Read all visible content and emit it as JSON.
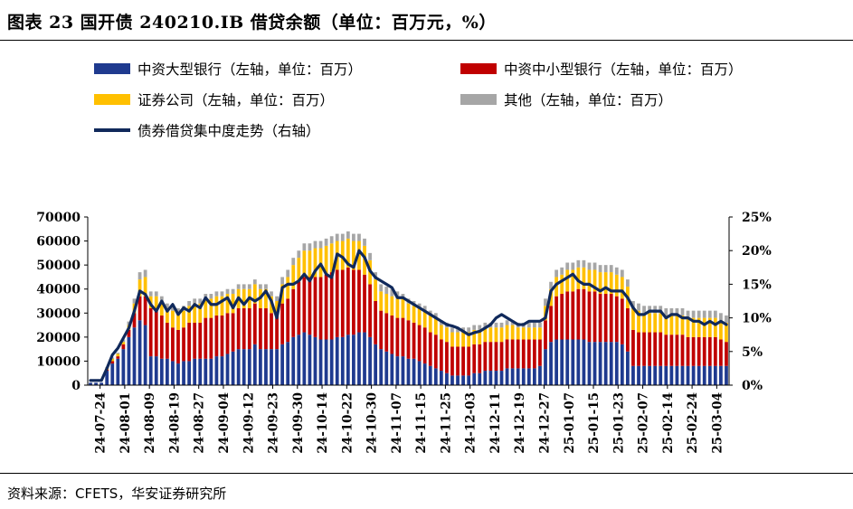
{
  "title": "图表 23  国开债 240210.IB 借贷余额（单位：百万元，%）",
  "source": "资料来源：CFETS，华安证券研究所",
  "colors": {
    "big_bank": "#1f3a8f",
    "small_bank": "#c00000",
    "securities": "#ffc000",
    "other": "#a6a6a6",
    "line": "#10295b"
  },
  "chart_data": {
    "type": "bar",
    "stacked": true,
    "legend": [
      "中资大型银行（左轴，单位：百万）",
      "中资中小型银行（左轴，单位：百万）",
      "证券公司（左轴，单位：百万）",
      "其他（左轴，单位：百万）",
      "债券借贷集中度走势（右轴）"
    ],
    "left_axis": {
      "min": 0,
      "max": 70000,
      "ticks": [
        "0",
        "10000",
        "20000",
        "30000",
        "40000",
        "50000",
        "60000",
        "70000"
      ]
    },
    "right_axis": {
      "min": 0,
      "max": 25,
      "ticks": [
        "0%",
        "5%",
        "10%",
        "15%",
        "20%",
        "25%"
      ]
    },
    "x_tick_labels": [
      "24-07-24",
      "24-08-01",
      "24-08-09",
      "24-08-19",
      "24-08-27",
      "24-09-04",
      "24-09-12",
      "24-09-23",
      "24-09-30",
      "24-10-14",
      "24-10-22",
      "24-10-30",
      "24-11-07",
      "24-11-15",
      "24-11-25",
      "24-12-03",
      "24-12-11",
      "24-12-19",
      "24-12-27",
      "25-01-07",
      "25-01-15",
      "25-01-23",
      "25-02-07",
      "25-02-14",
      "25-02-24",
      "25-03-04"
    ],
    "series": [
      {
        "name": "中资大型银行（左轴，单位：百万）",
        "values": [
          1000,
          1000,
          1000,
          6000,
          9000,
          11000,
          15000,
          20000,
          24000,
          27000,
          25000,
          12000,
          12000,
          11000,
          11000,
          10000,
          9000,
          10000,
          10000,
          11000,
          11000,
          11000,
          11000,
          12000,
          12000,
          13000,
          14000,
          15000,
          15000,
          15000,
          17000,
          15000,
          15000,
          15000,
          15000,
          17000,
          18000,
          20000,
          21000,
          22000,
          21000,
          20000,
          19000,
          19000,
          19000,
          20000,
          20000,
          21000,
          21000,
          22000,
          22000,
          20000,
          17000,
          15000,
          14000,
          13000,
          12000,
          12000,
          11000,
          11000,
          10000,
          9000,
          8000,
          7000,
          6000,
          5000,
          4000,
          4000,
          4000,
          4000,
          5000,
          5000,
          6000,
          6000,
          6000,
          6000,
          7000,
          7000,
          7000,
          7000,
          7000,
          7000,
          8000,
          15000,
          18000,
          19000,
          19000,
          19000,
          19000,
          19000,
          19000,
          18000,
          18000,
          18000,
          18000,
          18000,
          18000,
          17000,
          14000,
          8000,
          8000,
          8000,
          8000,
          8000,
          8000,
          8000,
          8000,
          8000,
          8000,
          8000,
          8000,
          8000,
          8000,
          8000,
          8000,
          8000,
          8000
        ]
      },
      {
        "name": "中资中小型银行（左轴，单位：百万）",
        "values": [
          0,
          0,
          0,
          500,
          1000,
          1000,
          2000,
          3000,
          6000,
          10000,
          12000,
          20000,
          20000,
          18000,
          15000,
          14000,
          14000,
          14000,
          16000,
          15000,
          15000,
          17000,
          17000,
          17000,
          17000,
          17000,
          16000,
          17000,
          17000,
          17000,
          17000,
          17000,
          17000,
          15000,
          14000,
          17000,
          18000,
          20000,
          22000,
          23000,
          24000,
          25000,
          26000,
          27000,
          28000,
          28000,
          28000,
          28000,
          27000,
          26000,
          24000,
          22000,
          18000,
          16000,
          16000,
          16000,
          16000,
          16000,
          16000,
          15000,
          15000,
          15000,
          14000,
          14000,
          13000,
          13000,
          12000,
          12000,
          12000,
          12000,
          12000,
          12000,
          12000,
          12000,
          12000,
          12000,
          12000,
          12000,
          12000,
          12000,
          12000,
          12000,
          11000,
          12000,
          15000,
          18000,
          19000,
          20000,
          20000,
          21000,
          21000,
          21000,
          21000,
          20000,
          20000,
          20000,
          19000,
          19000,
          18000,
          15000,
          14000,
          14000,
          14000,
          14000,
          14000,
          13000,
          13000,
          13000,
          13000,
          12000,
          12000,
          12000,
          12000,
          12000,
          12000,
          11000,
          10000
        ]
      },
      {
        "name": "证券公司（左轴，单位：百万）",
        "values": [
          0,
          0,
          0,
          500,
          1000,
          1000,
          1000,
          2000,
          4000,
          7000,
          8000,
          5000,
          5000,
          6000,
          6000,
          7000,
          7000,
          7000,
          7000,
          8000,
          8000,
          8000,
          8000,
          8000,
          8000,
          8000,
          8000,
          8000,
          8000,
          8000,
          8000,
          8000,
          8000,
          7000,
          6000,
          8000,
          9000,
          10000,
          10000,
          11000,
          11000,
          12000,
          12000,
          12000,
          12000,
          12000,
          12000,
          12000,
          12000,
          12000,
          12000,
          10000,
          9000,
          8000,
          8000,
          8000,
          8000,
          8000,
          7000,
          7000,
          7000,
          7000,
          7000,
          7000,
          6000,
          6000,
          6000,
          6000,
          6000,
          6000,
          6000,
          6000,
          6000,
          6000,
          6000,
          6000,
          6000,
          6000,
          5000,
          5000,
          5000,
          5000,
          5000,
          6000,
          7000,
          8000,
          8000,
          9000,
          9000,
          9000,
          9000,
          9000,
          9000,
          9000,
          9000,
          9000,
          9000,
          9000,
          9000,
          9000,
          9000,
          8000,
          8000,
          8000,
          8000,
          8000,
          8000,
          8000,
          8000,
          8000,
          8000,
          8000,
          8000,
          8000,
          8000,
          8000,
          8000
        ]
      },
      {
        "name": "其他（左轴，单位：百万）",
        "values": [
          0,
          0,
          0,
          500,
          500,
          500,
          1000,
          1500,
          2000,
          3000,
          3000,
          2000,
          2000,
          2000,
          2000,
          2000,
          2000,
          2000,
          2000,
          2000,
          2000,
          2000,
          2000,
          2000,
          2000,
          2000,
          2000,
          2000,
          2000,
          2000,
          2000,
          2000,
          2000,
          2000,
          2000,
          3000,
          3000,
          3000,
          3000,
          3000,
          3000,
          3000,
          3000,
          3000,
          3000,
          3000,
          3000,
          3000,
          3000,
          3000,
          3000,
          3000,
          3000,
          3000,
          3000,
          3000,
          3000,
          2000,
          2000,
          2000,
          2000,
          2000,
          2000,
          2000,
          2000,
          2000,
          2000,
          2000,
          2000,
          2000,
          2000,
          2000,
          2000,
          2000,
          2000,
          2000,
          2000,
          2000,
          2000,
          2000,
          2000,
          2000,
          2000,
          3000,
          3000,
          3000,
          3000,
          3000,
          3000,
          3000,
          3000,
          3000,
          3000,
          3000,
          3000,
          3000,
          3000,
          3000,
          3000,
          3000,
          3000,
          3000,
          3000,
          3000,
          3000,
          3000,
          3000,
          3000,
          3000,
          3000,
          3000,
          3000,
          3000,
          3000,
          3000,
          3000,
          3000
        ]
      },
      {
        "name": "债券借贷集中度走势（右轴）",
        "axis": "right",
        "values": [
          0.7,
          0.7,
          0.7,
          2.5,
          4.5,
          5.5,
          7.0,
          8.5,
          11.0,
          14.0,
          13.5,
          12.0,
          11.0,
          12.5,
          11.0,
          12.0,
          10.5,
          11.5,
          11.0,
          12.0,
          11.5,
          13.0,
          12.0,
          12.0,
          12.5,
          13.0,
          11.5,
          13.0,
          12.0,
          13.0,
          12.5,
          13.0,
          14.0,
          12.5,
          10.0,
          14.5,
          15.0,
          15.0,
          15.5,
          16.5,
          15.5,
          17.0,
          18.0,
          16.5,
          16.0,
          19.5,
          19.0,
          18.0,
          17.5,
          20.0,
          19.0,
          17.0,
          16.0,
          15.5,
          15.0,
          14.5,
          13.0,
          13.0,
          12.5,
          12.0,
          11.5,
          11.0,
          10.5,
          10.0,
          9.5,
          9.0,
          8.8,
          8.5,
          8.0,
          7.5,
          7.8,
          8.0,
          8.5,
          9.0,
          10.0,
          10.5,
          10.0,
          9.5,
          9.0,
          9.0,
          9.5,
          9.5,
          9.5,
          10.0,
          14.0,
          15.0,
          15.5,
          16.0,
          16.5,
          15.5,
          15.0,
          15.0,
          14.5,
          14.0,
          14.5,
          14.0,
          14.0,
          14.0,
          13.0,
          11.5,
          10.5,
          10.5,
          11.0,
          11.0,
          11.0,
          10.0,
          10.5,
          10.5,
          10.0,
          10.0,
          9.5,
          9.5,
          9.0,
          9.5,
          9.0,
          9.5,
          9.0
        ]
      }
    ]
  }
}
